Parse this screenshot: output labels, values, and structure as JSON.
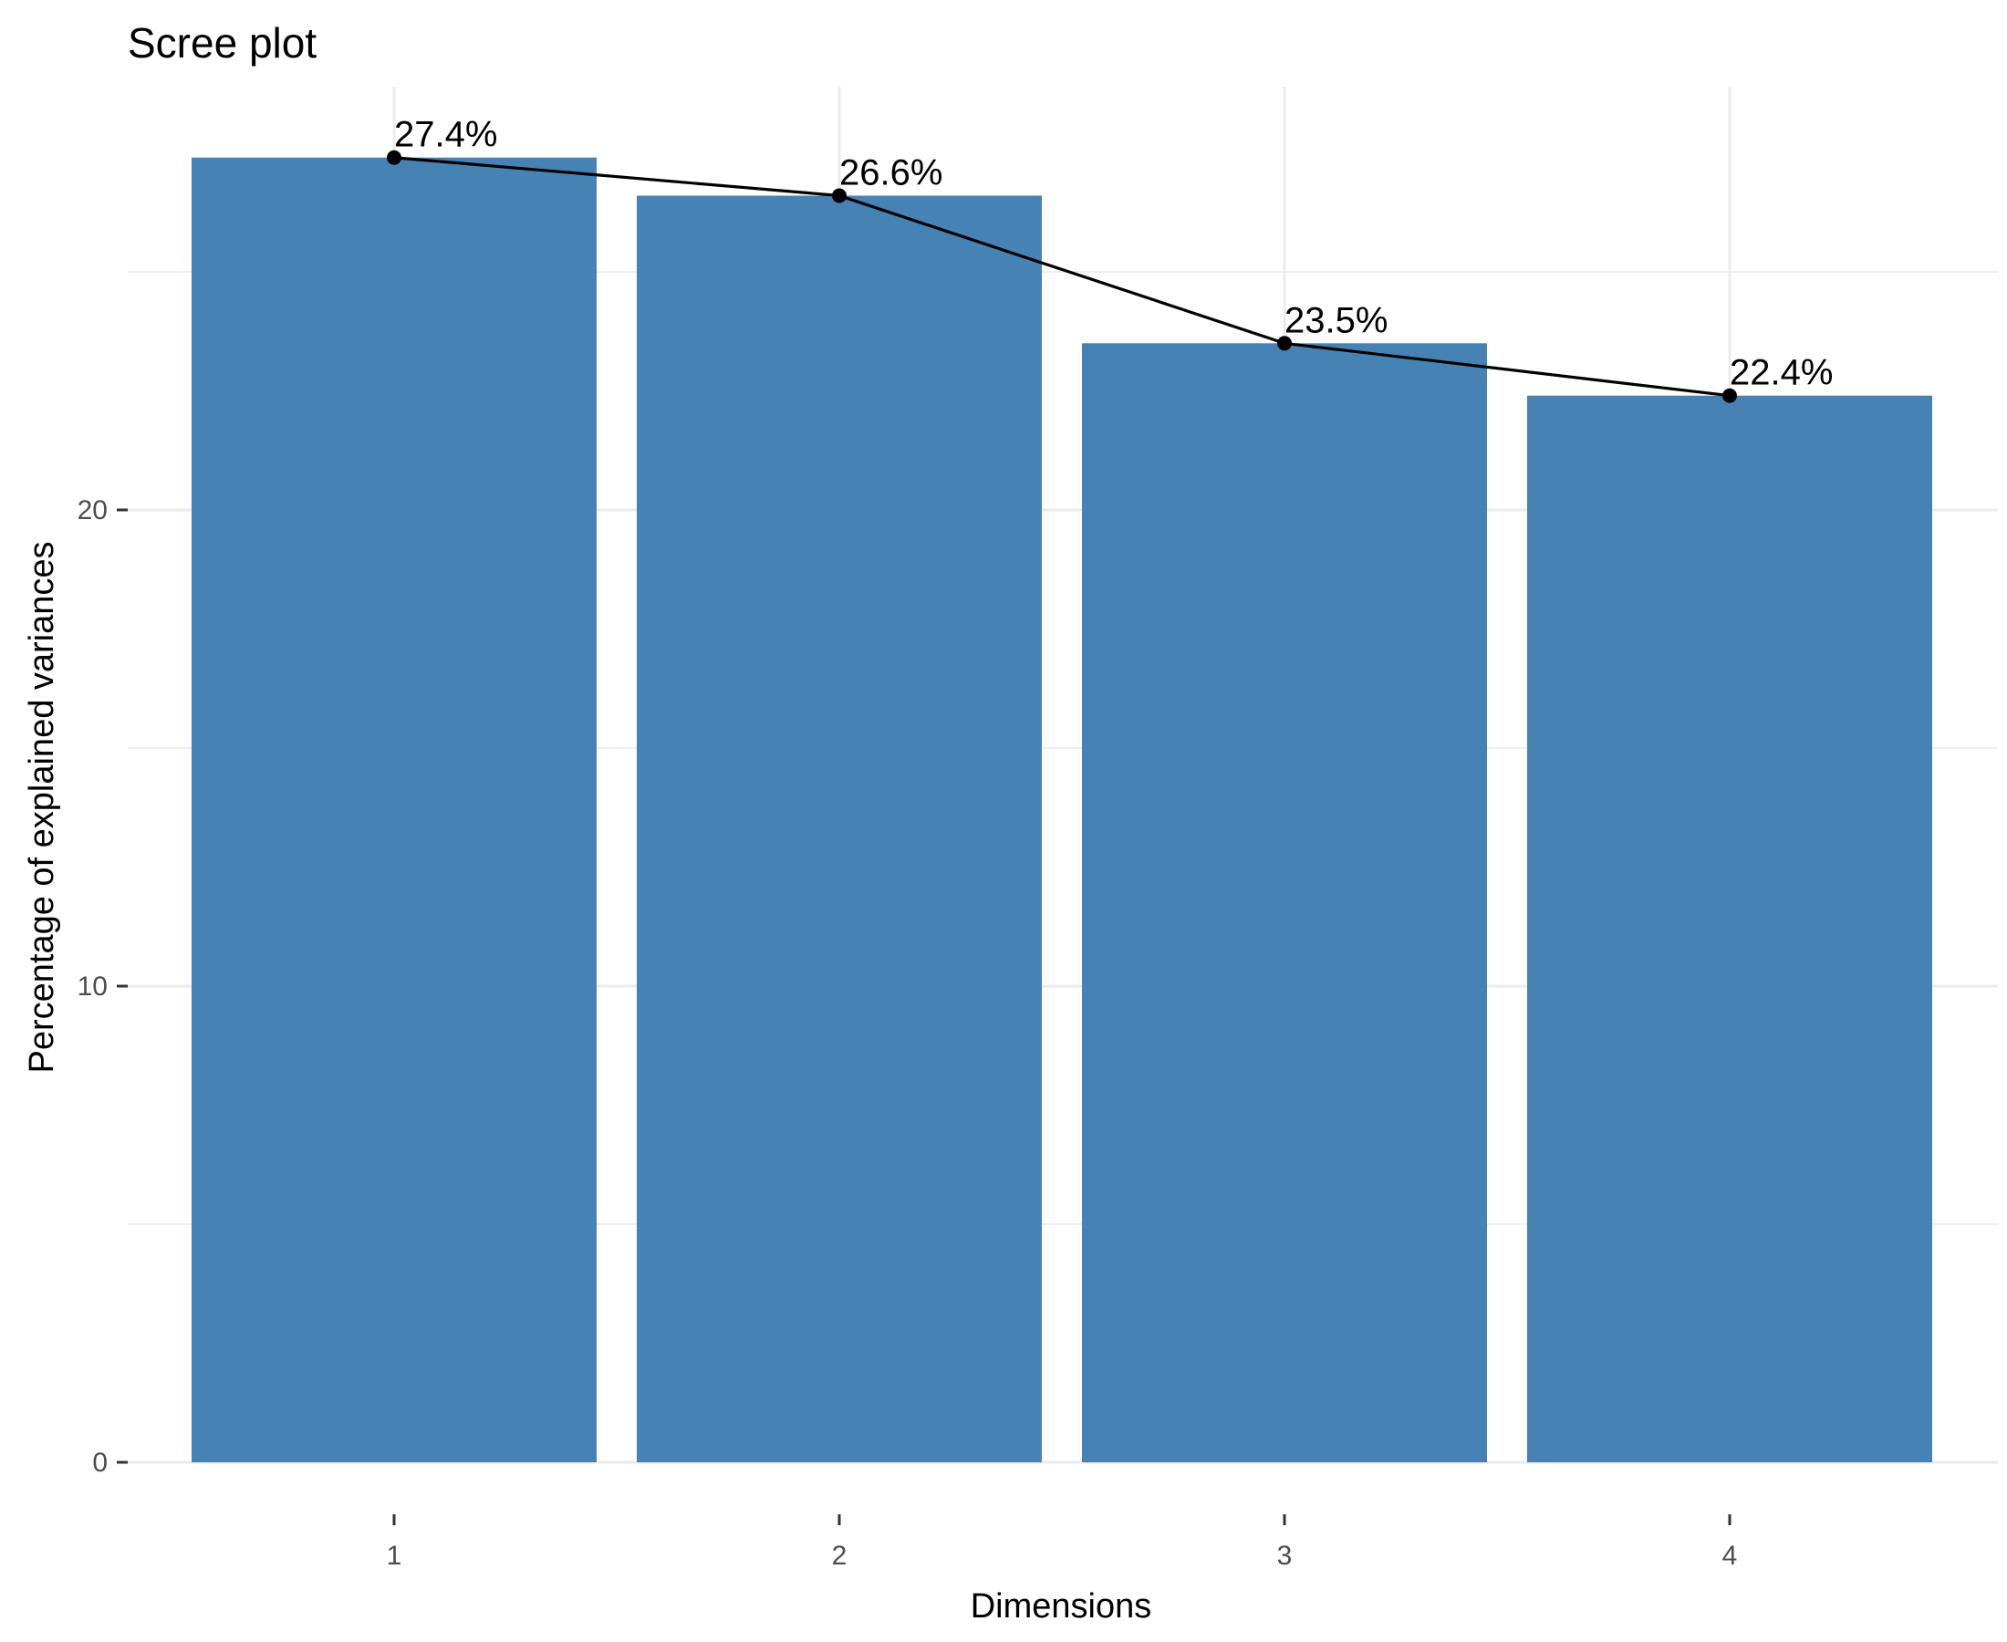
{
  "chart_data": {
    "type": "bar",
    "title": "Scree plot",
    "xlabel": "Dimensions",
    "ylabel": "Percentage of explained variances",
    "categories": [
      "1",
      "2",
      "3",
      "4"
    ],
    "values": [
      27.4,
      26.6,
      23.5,
      22.4
    ],
    "data_labels": [
      "27.4%",
      "26.6%",
      "23.5%",
      "22.4%"
    ],
    "y_ticks": [
      0,
      10,
      20
    ],
    "y_tick_labels": [
      "0",
      "10",
      "20"
    ],
    "ylim": [
      0,
      29.2
    ],
    "grid": true,
    "overlay": "line with points connecting bar tops",
    "colors": {
      "bar": "#4682B4",
      "line": "#000000",
      "grid": "#EBEBEB",
      "tick_text": "#4D4D4D"
    }
  }
}
